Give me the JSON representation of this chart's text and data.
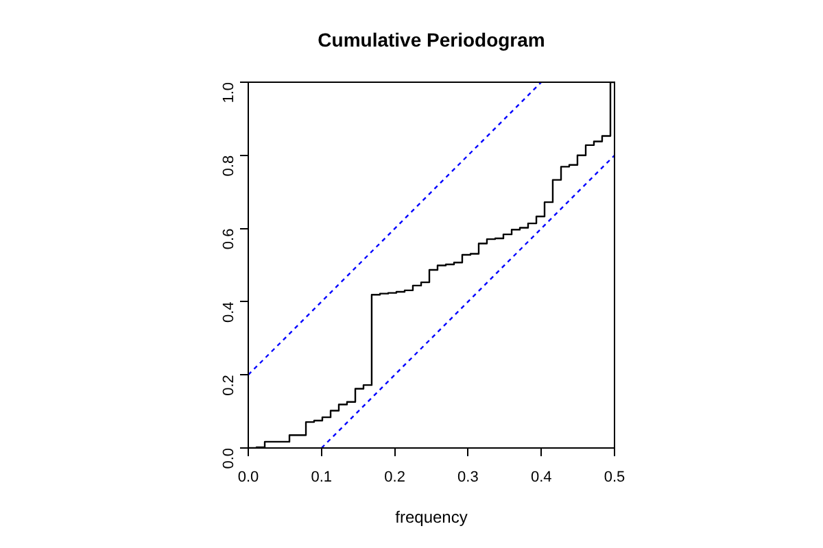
{
  "chart_data": {
    "type": "step",
    "title": "Cumulative Periodogram",
    "xlabel": "frequency",
    "xlim": [
      0,
      0.5
    ],
    "ylim": [
      0,
      1
    ],
    "xticks": [
      {
        "value": 0,
        "label": "0.0"
      },
      {
        "value": 0.1,
        "label": "0.1"
      },
      {
        "value": 0.2,
        "label": "0.2"
      },
      {
        "value": 0.3,
        "label": "0.3"
      },
      {
        "value": 0.4,
        "label": "0.4"
      },
      {
        "value": 0.5,
        "label": "0.5"
      }
    ],
    "yticks": [
      {
        "value": 0,
        "label": "0.0"
      },
      {
        "value": 0.2,
        "label": "0.2"
      },
      {
        "value": 0.4,
        "label": "0.4"
      },
      {
        "value": 0.6,
        "label": "0.6"
      },
      {
        "value": 0.8,
        "label": "0.8"
      },
      {
        "value": 1,
        "label": "1.0"
      }
    ],
    "grid": false,
    "legend": false,
    "marker": "none",
    "series": [
      {
        "type": "step",
        "color": "#000000",
        "line_style": "solid",
        "x": [
          0,
          0.0112,
          0.0225,
          0.0337,
          0.0449,
          0.0562,
          0.0674,
          0.0787,
          0.0899,
          0.1011,
          0.1124,
          0.1236,
          0.1348,
          0.1461,
          0.1573,
          0.1685,
          0.1798,
          0.191,
          0.2022,
          0.2135,
          0.2247,
          0.236,
          0.2472,
          0.2584,
          0.2697,
          0.2809,
          0.2921,
          0.3034,
          0.3146,
          0.3258,
          0.3371,
          0.3483,
          0.3596,
          0.3708,
          0.382,
          0.3933,
          0.4045,
          0.4157,
          0.427,
          0.4382,
          0.4494,
          0.4607,
          0.4719,
          0.4831,
          0.4944,
          0.5
        ],
        "values": [
          0,
          0.002,
          0.017,
          0.017,
          0.017,
          0.035,
          0.035,
          0.071,
          0.075,
          0.084,
          0.102,
          0.119,
          0.126,
          0.162,
          0.172,
          0.419,
          0.422,
          0.424,
          0.427,
          0.431,
          0.444,
          0.453,
          0.487,
          0.499,
          0.502,
          0.507,
          0.528,
          0.531,
          0.559,
          0.571,
          0.573,
          0.584,
          0.597,
          0.602,
          0.614,
          0.633,
          0.672,
          0.733,
          0.769,
          0.774,
          0.8,
          0.828,
          0.838,
          0.853,
          1,
          1
        ]
      },
      {
        "type": "line",
        "color": "#0000ff",
        "line_style": "dashed",
        "x": [
          0,
          0.4
        ],
        "values": [
          0.2,
          1
        ]
      },
      {
        "type": "line",
        "color": "#0000ff",
        "line_style": "dashed",
        "x": [
          0.1,
          0.5
        ],
        "values": [
          0,
          0.8
        ]
      }
    ]
  }
}
